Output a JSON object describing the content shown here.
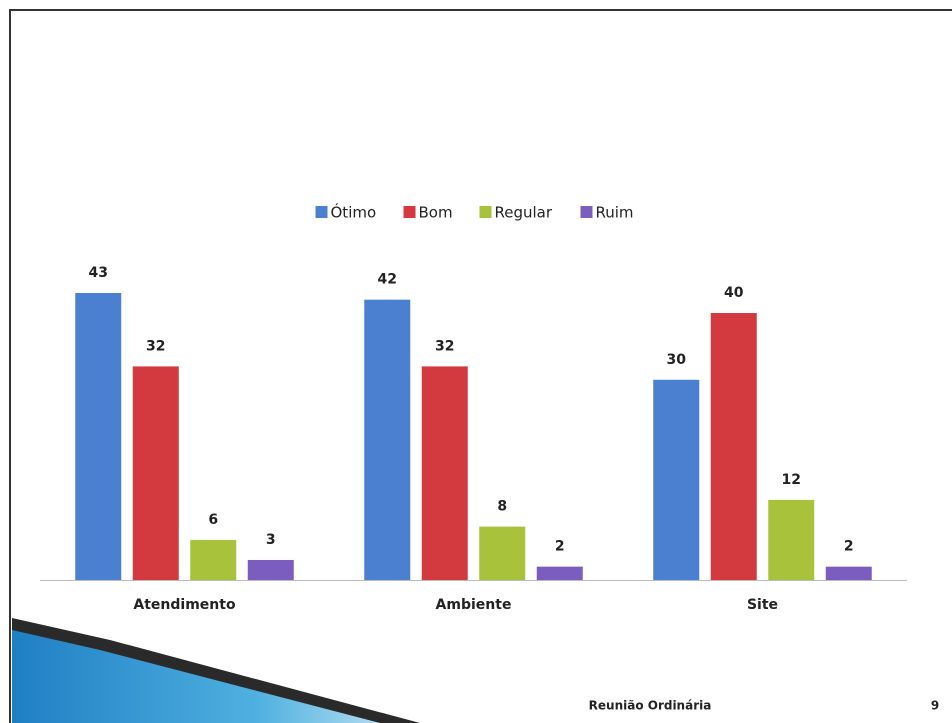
{
  "chart_data": {
    "type": "bar",
    "categories": [
      "Atendimento",
      "Ambiente",
      "Site"
    ],
    "series": [
      {
        "name": "Ótimo",
        "color": "#4a80cf",
        "values": [
          43,
          42,
          30
        ]
      },
      {
        "name": "Bom",
        "color": "#d33a3f",
        "values": [
          32,
          32,
          40
        ]
      },
      {
        "name": "Regular",
        "color": "#a8c23c",
        "values": [
          6,
          8,
          12
        ]
      },
      {
        "name": "Ruim",
        "color": "#7b5dbf",
        "values": [
          3,
          2,
          2
        ]
      }
    ],
    "legend": "top"
  },
  "footer": {
    "text": "Reunião Ordinária",
    "page": "9"
  }
}
